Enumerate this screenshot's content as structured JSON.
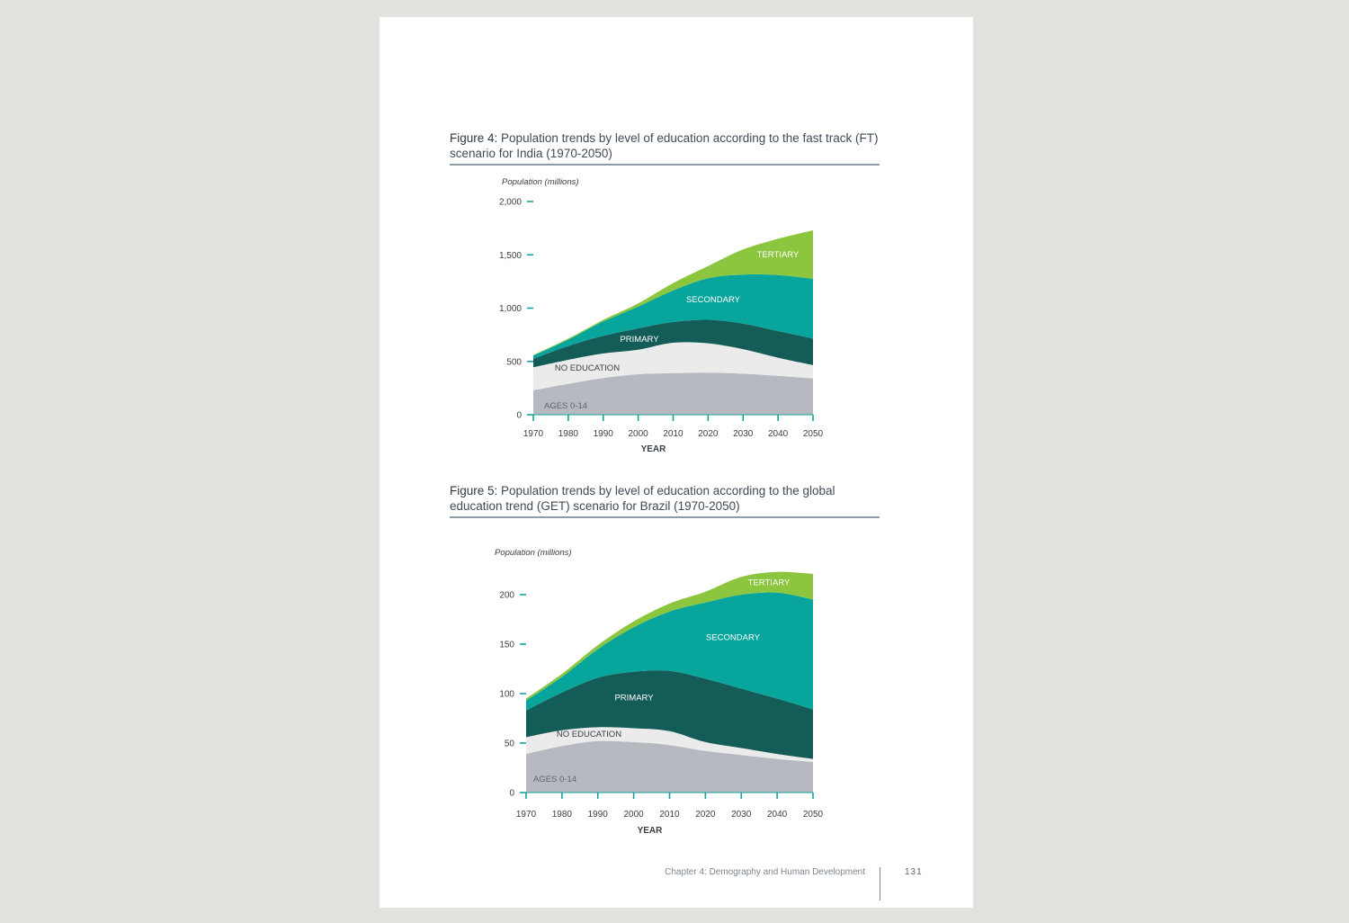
{
  "footer": {
    "chapter": "Chapter 4: Demography and Human Development",
    "page_number": "131"
  },
  "colors": {
    "ages_0_14": "#b6bac0",
    "no_education": "#ebebeb",
    "primary": "#145c58",
    "secondary": "#07a59b",
    "tertiary": "#8cc63f",
    "tick": "#13a39c",
    "axis_text": "#3a3f45"
  },
  "figures": [
    {
      "label": "Figure 4:",
      "caption": "Population trends by level of education according to the fast track (FT) scenario for India (1970-2050)"
    },
    {
      "label": "Figure 5:",
      "caption": "Population trends by level of education according to the global education trend (GET) scenario for Brazil (1970-2050)"
    }
  ],
  "chart_data": [
    {
      "type": "area",
      "stacked": true,
      "ylabel": "Population (millions)",
      "xlabel": "YEAR",
      "x": [
        1970,
        1980,
        1990,
        2000,
        2010,
        2020,
        2030,
        2040,
        2050
      ],
      "ylim": [
        0,
        2000
      ],
      "yticks": [
        0,
        500,
        1000,
        1500,
        2000
      ],
      "ytick_labels": [
        "0",
        "500",
        "1,000",
        "1,500",
        "2,000"
      ],
      "series": [
        {
          "name": "AGES 0-14",
          "values": [
            230,
            290,
            345,
            380,
            390,
            395,
            385,
            365,
            340
          ]
        },
        {
          "name": "NO EDUCATION",
          "values": [
            215,
            225,
            230,
            230,
            285,
            275,
            230,
            170,
            125
          ]
        },
        {
          "name": "PRIMARY",
          "values": [
            80,
            130,
            165,
            200,
            195,
            220,
            240,
            250,
            250
          ]
        },
        {
          "name": "SECONDARY",
          "values": [
            30,
            60,
            135,
            205,
            295,
            390,
            460,
            525,
            560
          ]
        },
        {
          "name": "TERTIARY",
          "values": [
            5,
            10,
            15,
            30,
            70,
            115,
            235,
            340,
            455
          ]
        }
      ]
    },
    {
      "type": "area",
      "stacked": true,
      "ylabel": "Population (millions)",
      "xlabel": "YEAR",
      "x": [
        1970,
        1980,
        1990,
        2000,
        2010,
        2020,
        2030,
        2040,
        2050
      ],
      "ylim": [
        0,
        220
      ],
      "yticks": [
        0,
        50,
        100,
        150,
        200
      ],
      "ytick_labels": [
        "0",
        "50",
        "100",
        "150",
        "200"
      ],
      "series": [
        {
          "name": "AGES 0-14",
          "values": [
            39,
            47,
            52,
            51,
            48,
            42,
            38,
            34,
            31
          ]
        },
        {
          "name": "NO EDUCATION",
          "values": [
            17,
            16,
            14,
            14,
            14,
            9,
            7,
            5,
            3
          ]
        },
        {
          "name": "PRIMARY",
          "values": [
            27,
            38,
            50,
            57,
            61,
            64,
            60,
            56,
            50
          ]
        },
        {
          "name": "SECONDARY",
          "values": [
            10,
            16,
            29,
            45,
            60,
            77,
            95,
            107,
            111
          ]
        },
        {
          "name": "TERTIARY",
          "values": [
            2,
            3,
            4,
            6,
            8,
            11,
            18,
            21,
            26
          ]
        }
      ]
    }
  ]
}
